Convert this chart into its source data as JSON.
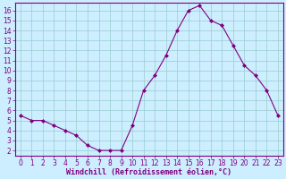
{
  "x": [
    0,
    1,
    2,
    3,
    4,
    5,
    6,
    7,
    8,
    9,
    10,
    11,
    12,
    13,
    14,
    15,
    16,
    17,
    18,
    19,
    20,
    21,
    22,
    23
  ],
  "y": [
    5.5,
    5.0,
    5.0,
    4.5,
    4.0,
    3.5,
    2.5,
    2.0,
    2.0,
    2.0,
    4.5,
    8.0,
    9.5,
    11.5,
    14.0,
    16.0,
    16.5,
    15.0,
    14.5,
    12.5,
    10.5,
    9.5,
    8.0,
    5.5
  ],
  "line_color": "#800080",
  "marker": "D",
  "marker_size": 2,
  "bg_color": "#cceeff",
  "grid_color": "#99cccc",
  "xlabel": "Windchill (Refroidissement éolien,°C)",
  "ylabel": "",
  "xlim": [
    -0.5,
    23.5
  ],
  "ylim": [
    1.5,
    16.8
  ],
  "yticks": [
    2,
    3,
    4,
    5,
    6,
    7,
    8,
    9,
    10,
    11,
    12,
    13,
    14,
    15,
    16
  ],
  "xticks": [
    0,
    1,
    2,
    3,
    4,
    5,
    6,
    7,
    8,
    9,
    10,
    11,
    12,
    13,
    14,
    15,
    16,
    17,
    18,
    19,
    20,
    21,
    22,
    23
  ],
  "tick_fontsize": 5.5,
  "xlabel_fontsize": 6,
  "label_color": "#800080"
}
